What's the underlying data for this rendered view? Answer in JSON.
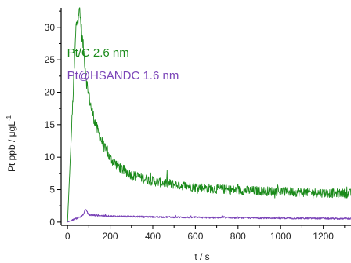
{
  "chart_data": {
    "type": "line",
    "title": "",
    "xlabel": "t / s",
    "ylabel": "Pt ppb / μgL",
    "ylabel_superscript": "-1",
    "xlim": [
      -30,
      1330
    ],
    "ylim": [
      -0.5,
      33
    ],
    "xticks": [
      0,
      200,
      400,
      600,
      800,
      1000,
      1200
    ],
    "yticks": [
      0,
      5,
      10,
      15,
      20,
      25,
      30
    ],
    "grid": false,
    "legend": "none",
    "annotations": [
      {
        "text": "Pt/C 2.6 nm",
        "color": "#1a8a1a",
        "x": 200,
        "y": 25.5
      },
      {
        "text": "Pt@HSANDC  1.6 nm",
        "color": "#7b45b8",
        "x": 200,
        "y": 22.0
      }
    ],
    "series": [
      {
        "color": "#1a8a1a",
        "x": [
          0,
          20,
          40,
          55,
          70,
          80,
          90,
          100,
          110,
          120,
          130,
          140,
          160,
          180,
          200,
          250,
          300,
          350,
          400,
          500,
          600,
          700,
          800,
          900,
          1000,
          1100,
          1200,
          1330
        ],
        "y": [
          0,
          15,
          30,
          33,
          28,
          25,
          21.5,
          19.5,
          17.8,
          16.5,
          15.3,
          14.2,
          12.5,
          11.0,
          9.8,
          8.3,
          7.3,
          6.8,
          6.3,
          5.8,
          5.4,
          5.1,
          4.9,
          4.8,
          4.7,
          4.6,
          4.5,
          4.4
        ],
        "noise": 0.7
      },
      {
        "color": "#7b45b8",
        "x": [
          0,
          30,
          60,
          75,
          85,
          100,
          150,
          200,
          300,
          400,
          600,
          800,
          1000,
          1200,
          1330
        ],
        "y": [
          0,
          0.4,
          0.8,
          1.2,
          2.0,
          1.1,
          1.0,
          0.9,
          0.85,
          0.8,
          0.7,
          0.65,
          0.6,
          0.55,
          0.5
        ],
        "noise": 0.12
      }
    ]
  }
}
